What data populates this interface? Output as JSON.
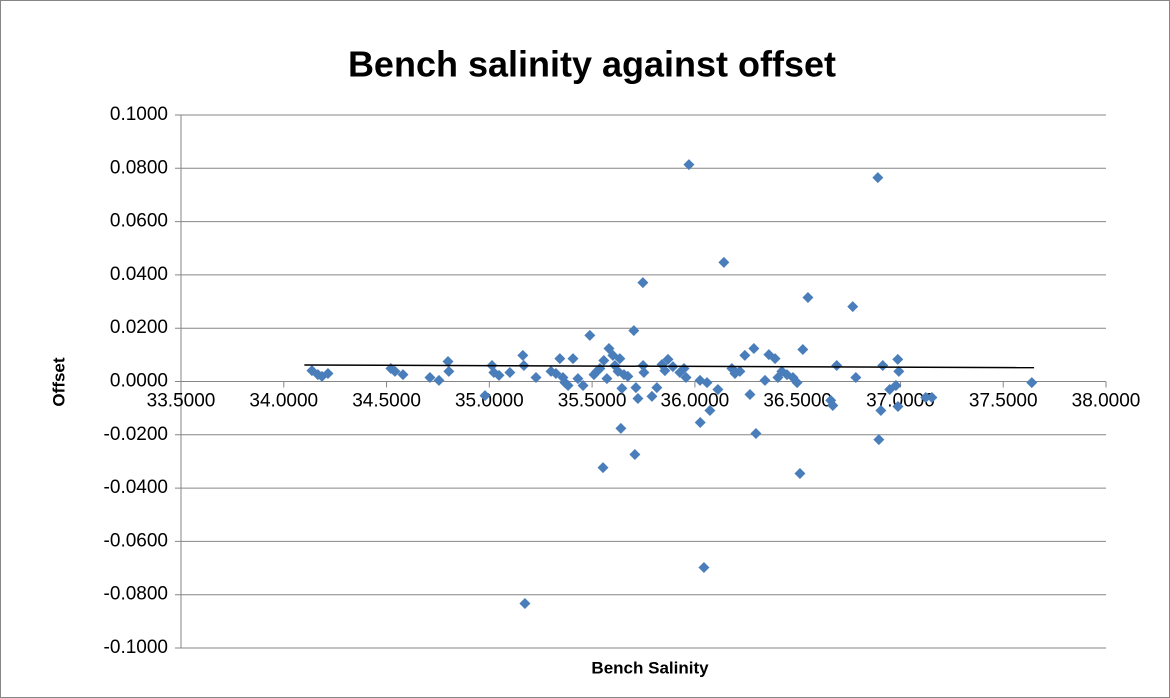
{
  "chart_data": {
    "type": "scatter",
    "title": "Bench salinity against offset",
    "xlabel": "Bench Salinity",
    "ylabel": "Offset",
    "series": [
      {
        "name": "Offset",
        "color": "#4a7ebb",
        "x": [
          34.137,
          34.166,
          34.186,
          34.215,
          34.521,
          34.541,
          34.58,
          34.711,
          34.755,
          34.799,
          34.803,
          34.979,
          35.013,
          35.022,
          35.047,
          35.1,
          35.163,
          35.168,
          35.173,
          35.227,
          35.3,
          35.324,
          35.343,
          35.358,
          35.368,
          35.383,
          35.407,
          35.431,
          35.456,
          35.489,
          35.509,
          35.523,
          35.538,
          35.553,
          35.557,
          35.572,
          35.582,
          35.601,
          35.611,
          35.626,
          35.635,
          35.64,
          35.645,
          35.655,
          35.674,
          35.703,
          35.708,
          35.713,
          35.723,
          35.747,
          35.748,
          35.752,
          35.791,
          35.815,
          35.84,
          35.854,
          35.869,
          35.893,
          35.927,
          35.947,
          35.957,
          35.971,
          36.025,
          36.026,
          36.044,
          36.059,
          36.073,
          36.112,
          36.141,
          36.18,
          36.195,
          36.219,
          36.243,
          36.268,
          36.287,
          36.297,
          36.341,
          36.36,
          36.39,
          36.404,
          36.423,
          36.448,
          36.477,
          36.497,
          36.511,
          36.525,
          36.55,
          36.661,
          36.671,
          36.69,
          36.768,
          36.783,
          36.89,
          36.895,
          36.905,
          36.914,
          36.948,
          36.978,
          36.987,
          36.992,
          36.988,
          37.123,
          37.153,
          37.639
        ],
        "values": [
          0.0041,
          0.0026,
          0.0019,
          0.003,
          0.0049,
          0.0038,
          0.0026,
          0.0015,
          0.0004,
          0.0075,
          0.0038,
          -0.0053,
          0.006,
          0.0034,
          0.0023,
          0.0034,
          0.0098,
          0.006,
          -0.0833,
          0.0015,
          0.0038,
          0.003,
          0.0086,
          0.0015,
          -0.0004,
          -0.0015,
          0.0086,
          0.0011,
          -0.0015,
          0.0173,
          0.0026,
          0.0038,
          0.0049,
          -0.0323,
          0.0079,
          0.0011,
          0.0124,
          0.0098,
          0.006,
          0.0038,
          0.0086,
          -0.0176,
          -0.0026,
          0.0026,
          0.0019,
          0.0191,
          -0.0274,
          -0.0023,
          -0.0064,
          0.0371,
          0.006,
          0.0034,
          -0.0056,
          -0.0023,
          0.0064,
          0.0041,
          0.0083,
          0.0056,
          0.0034,
          0.0049,
          0.0015,
          0.0814,
          0.0004,
          -0.0154,
          -0.0698,
          -0.0004,
          -0.0109,
          -0.003,
          0.0447,
          0.0049,
          0.003,
          0.0038,
          0.0098,
          -0.0049,
          0.0124,
          -0.0195,
          0.0004,
          0.0101,
          0.0086,
          0.0015,
          0.0038,
          0.0026,
          0.0015,
          -0.0004,
          -0.0345,
          0.012,
          0.0315,
          -0.0071,
          -0.009,
          0.006,
          0.0281,
          0.0015,
          0.0765,
          -0.0218,
          -0.0109,
          0.006,
          -0.003,
          -0.0015,
          0.0083,
          0.0038,
          -0.0094,
          -0.006,
          -0.006,
          -0.0004
        ]
      }
    ],
    "trendline": {
      "x": [
        34.1,
        37.65
      ],
      "values": [
        0.0062,
        0.0052
      ]
    },
    "xlim": [
      33.5,
      38.0
    ],
    "xticks": [
      {
        "value": 33.5,
        "label": "33.5000"
      },
      {
        "value": 34.0,
        "label": "34.0000"
      },
      {
        "value": 34.5,
        "label": "34.5000"
      },
      {
        "value": 35.0,
        "label": "35.0000"
      },
      {
        "value": 35.5,
        "label": "35.5000"
      },
      {
        "value": 36.0,
        "label": "36.0000"
      },
      {
        "value": 36.5,
        "label": "36.5000"
      },
      {
        "value": 37.0,
        "label": "37.0000"
      },
      {
        "value": 37.5,
        "label": "37.5000"
      },
      {
        "value": 38.0,
        "label": "38.0000"
      }
    ],
    "ylim": [
      -0.1,
      0.1
    ],
    "yticks": [
      {
        "value": -0.1,
        "label": "-0.1000"
      },
      {
        "value": -0.08,
        "label": "-0.0800"
      },
      {
        "value": -0.06,
        "label": "-0.0600"
      },
      {
        "value": -0.04,
        "label": "-0.0400"
      },
      {
        "value": -0.02,
        "label": "-0.0200"
      },
      {
        "value": 0,
        "label": "0.0000"
      },
      {
        "value": 0.02,
        "label": "0.0200"
      },
      {
        "value": 0.04,
        "label": "0.0400"
      },
      {
        "value": 0.06,
        "label": "0.0600"
      },
      {
        "value": 0.08,
        "label": "0.0800"
      },
      {
        "value": 0.1,
        "label": "0.1000"
      }
    ],
    "grid": true
  }
}
